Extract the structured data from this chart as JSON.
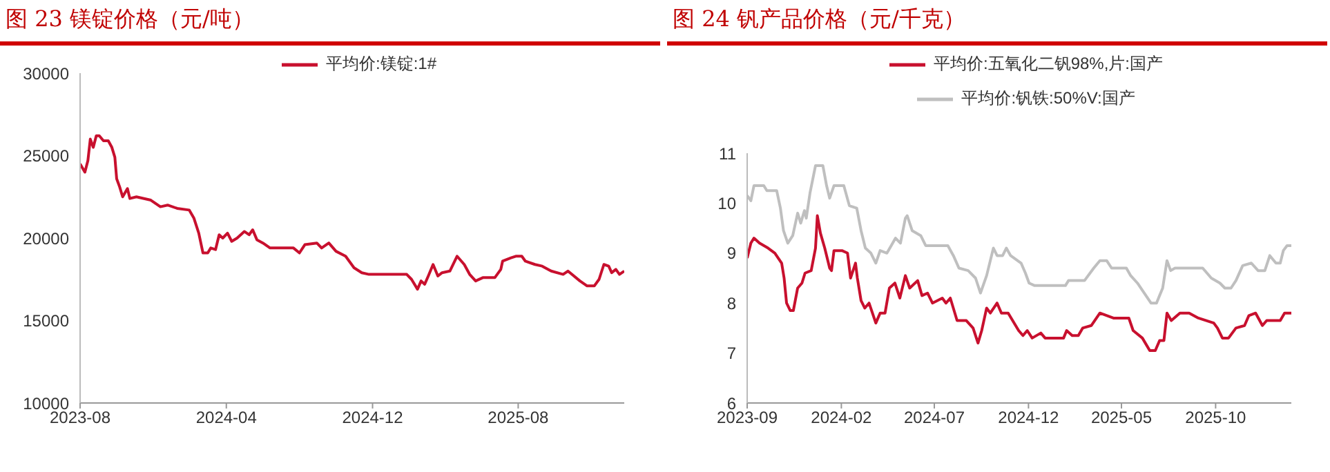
{
  "chart_data": [
    {
      "type": "line",
      "title": "图 23 镁锭价格（元/吨）",
      "legend": "top",
      "marker": "none",
      "xlim": [
        "2023-08-01",
        "2026-01-25"
      ],
      "xticks": [
        "2023-08",
        "2024-04",
        "2024-12",
        "2025-08"
      ],
      "ylim": [
        10000,
        30000
      ],
      "yticks": [
        10000,
        15000,
        20000,
        25000,
        30000
      ],
      "series": [
        {
          "name": "平均价:镁锭:1#",
          "color": "#c8102e",
          "x": [
            "2023-08-01",
            "2023-08-09",
            "2023-08-14",
            "2023-08-18",
            "2023-08-23",
            "2023-08-28",
            "2023-09-02",
            "2023-09-09",
            "2023-09-17",
            "2023-09-23",
            "2023-09-28",
            "2023-10-01",
            "2023-10-06",
            "2023-10-11",
            "2023-10-19",
            "2023-10-23",
            "2023-11-03",
            "2023-11-27",
            "2023-12-13",
            "2023-12-25",
            "2024-01-10",
            "2024-01-30",
            "2024-02-07",
            "2024-02-15",
            "2024-02-22",
            "2024-03-01",
            "2024-03-06",
            "2024-03-14",
            "2024-03-20",
            "2024-03-26",
            "2024-04-03",
            "2024-04-10",
            "2024-04-19",
            "2024-05-01",
            "2024-05-09",
            "2024-05-15",
            "2024-05-22",
            "2024-06-01",
            "2024-06-13",
            "2024-06-29",
            "2024-07-22",
            "2024-08-01",
            "2024-08-10",
            "2024-08-30",
            "2024-09-07",
            "2024-09-19",
            "2024-10-01",
            "2024-10-17",
            "2024-10-31",
            "2024-11-13",
            "2024-11-25",
            "2025-01-27",
            "2025-02-04",
            "2025-02-14",
            "2025-02-20",
            "2025-02-26",
            "2025-03-04",
            "2025-03-12",
            "2025-03-20",
            "2025-03-27",
            "2025-04-09",
            "2025-04-21",
            "2025-05-03",
            "2025-05-12",
            "2025-05-22",
            "2025-06-03",
            "2025-06-23",
            "2025-07-03",
            "2025-07-06",
            "2025-07-20",
            "2025-07-28",
            "2025-08-07",
            "2025-08-13",
            "2025-08-29",
            "2025-09-10",
            "2025-09-25",
            "2025-10-15",
            "2025-10-23",
            "2025-11-12",
            "2025-11-24",
            "2025-12-06",
            "2025-12-14",
            "2025-12-22",
            "2025-12-30",
            "2026-01-04",
            "2026-01-11",
            "2026-01-17",
            "2026-01-25"
          ],
          "values": [
            24500,
            24000,
            24700,
            26000,
            25500,
            26200,
            26200,
            25900,
            25900,
            25500,
            24900,
            23600,
            23100,
            22500,
            23000,
            22400,
            22500,
            22300,
            21900,
            22000,
            21800,
            21700,
            21200,
            20300,
            19100,
            19100,
            19400,
            19300,
            20200,
            20000,
            20300,
            19800,
            20000,
            20400,
            20200,
            20500,
            19900,
            19700,
            19400,
            19400,
            19400,
            19100,
            19600,
            19700,
            19400,
            19700,
            19200,
            18900,
            18200,
            17900,
            17800,
            17800,
            17500,
            16900,
            17400,
            17200,
            17700,
            18400,
            17700,
            17900,
            18000,
            18900,
            18400,
            17800,
            17400,
            17600,
            17600,
            18100,
            18600,
            18800,
            18900,
            18900,
            18600,
            18400,
            18300,
            18000,
            17800,
            18000,
            17400,
            17100,
            17100,
            17500,
            18400,
            18300,
            17900,
            18100,
            17800,
            18000
          ]
        }
      ]
    },
    {
      "type": "line",
      "title": "图 24 钒产品价格（元/千克）",
      "legend": "top",
      "marker": "none",
      "xlim": [
        "2023-09-01",
        "2026-02-01"
      ],
      "xticks": [
        "2023-09",
        "2024-02",
        "2024-07",
        "2024-12",
        "2025-05",
        "2025-10"
      ],
      "ylim": [
        6,
        11
      ],
      "yticks": [
        6,
        7,
        8,
        9,
        10,
        11
      ],
      "series": [
        {
          "name": "平均价:五氧化二钒98%,片:国产",
          "color": "#c8102e",
          "x": [
            "2023-09-01",
            "2023-09-07",
            "2023-09-12",
            "2023-09-21",
            "2023-10-05",
            "2023-10-16",
            "2023-10-27",
            "2023-10-31",
            "2023-11-04",
            "2023-11-10",
            "2023-11-15",
            "2023-11-22",
            "2023-11-29",
            "2023-12-04",
            "2023-12-14",
            "2023-12-21",
            "2023-12-24",
            "2023-12-29",
            "2024-01-05",
            "2024-01-13",
            "2024-01-16",
            "2024-01-20",
            "2024-02-02",
            "2024-02-11",
            "2024-02-16",
            "2024-02-24",
            "2024-02-27",
            "2024-03-04",
            "2024-03-10",
            "2024-03-17",
            "2024-03-28",
            "2024-04-04",
            "2024-04-12",
            "2024-04-19",
            "2024-04-28",
            "2024-05-06",
            "2024-05-15",
            "2024-05-22",
            "2024-06-04",
            "2024-06-11",
            "2024-06-20",
            "2024-06-28",
            "2024-07-14",
            "2024-07-20",
            "2024-07-27",
            "2024-08-07",
            "2024-08-22",
            "2024-09-02",
            "2024-09-10",
            "2024-09-16",
            "2024-09-24",
            "2024-09-30",
            "2024-10-11",
            "2024-10-18",
            "2024-10-29",
            "2024-11-15",
            "2024-11-22",
            "2024-11-29",
            "2024-12-07",
            "2024-12-21",
            "2024-12-28",
            "2025-01-27",
            "2025-02-01",
            "2025-02-10",
            "2025-02-20",
            "2025-02-27",
            "2025-03-13",
            "2025-03-27",
            "2025-04-18",
            "2025-05-13",
            "2025-05-20",
            "2025-06-04",
            "2025-06-16",
            "2025-06-25",
            "2025-07-02",
            "2025-07-09",
            "2025-07-14",
            "2025-07-21",
            "2025-08-04",
            "2025-08-19",
            "2025-09-03",
            "2025-09-28",
            "2025-10-04",
            "2025-10-12",
            "2025-10-22",
            "2025-11-03",
            "2025-11-17",
            "2025-11-24",
            "2025-12-05",
            "2025-12-16",
            "2025-12-23",
            "2026-01-14",
            "2026-01-21",
            "2026-02-01"
          ],
          "values": [
            8.9,
            9.2,
            9.3,
            9.2,
            9.1,
            9.0,
            8.8,
            8.5,
            8.0,
            7.85,
            7.85,
            8.3,
            8.4,
            8.6,
            8.65,
            9.1,
            9.75,
            9.4,
            9.1,
            8.7,
            8.65,
            9.05,
            9.05,
            9.0,
            8.5,
            8.8,
            8.5,
            8.05,
            7.9,
            8.0,
            7.6,
            7.8,
            7.8,
            8.3,
            8.4,
            8.1,
            8.55,
            8.3,
            8.45,
            8.15,
            8.2,
            8.0,
            8.1,
            8.0,
            8.1,
            7.65,
            7.65,
            7.5,
            7.2,
            7.45,
            7.9,
            7.8,
            8.0,
            7.8,
            7.8,
            7.45,
            7.35,
            7.45,
            7.3,
            7.4,
            7.3,
            7.3,
            7.45,
            7.35,
            7.35,
            7.5,
            7.55,
            7.8,
            7.7,
            7.7,
            7.45,
            7.3,
            7.05,
            7.05,
            7.25,
            7.25,
            7.8,
            7.65,
            7.8,
            7.8,
            7.7,
            7.6,
            7.5,
            7.3,
            7.3,
            7.5,
            7.55,
            7.75,
            7.8,
            7.55,
            7.65,
            7.65,
            7.8,
            7.8
          ]
        },
        {
          "name": "平均价:钒铁:50%V:国产",
          "color": "#bfbfbf",
          "x": [
            "2023-09-01",
            "2023-09-07",
            "2023-09-12",
            "2023-09-28",
            "2023-10-03",
            "2023-10-19",
            "2023-10-25",
            "2023-10-30",
            "2023-11-06",
            "2023-11-14",
            "2023-11-22",
            "2023-11-27",
            "2023-12-03",
            "2023-12-06",
            "2023-12-12",
            "2023-12-21",
            "2024-01-02",
            "2024-01-08",
            "2024-01-13",
            "2024-01-20",
            "2024-02-05",
            "2024-02-14",
            "2024-02-26",
            "2024-03-04",
            "2024-03-11",
            "2024-03-20",
            "2024-03-28",
            "2024-04-04",
            "2024-04-15",
            "2024-04-22",
            "2024-04-29",
            "2024-05-07",
            "2024-05-15",
            "2024-05-18",
            "2024-05-26",
            "2024-06-09",
            "2024-06-17",
            "2024-06-28",
            "2024-07-23",
            "2024-08-01",
            "2024-08-10",
            "2024-08-25",
            "2024-09-06",
            "2024-09-14",
            "2024-09-24",
            "2024-10-05",
            "2024-10-11",
            "2024-10-20",
            "2024-10-26",
            "2024-11-02",
            "2024-11-19",
            "2024-11-26",
            "2024-12-02",
            "2024-12-11",
            "2025-01-30",
            "2025-02-04",
            "2025-03-02",
            "2025-03-17",
            "2025-03-27",
            "2025-04-07",
            "2025-04-15",
            "2025-05-09",
            "2025-05-16",
            "2025-05-27",
            "2025-06-07",
            "2025-06-18",
            "2025-06-27",
            "2025-07-02",
            "2025-07-07",
            "2025-07-14",
            "2025-07-20",
            "2025-07-27",
            "2025-09-10",
            "2025-09-24",
            "2025-10-08",
            "2025-10-16",
            "2025-10-26",
            "2025-11-03",
            "2025-11-14",
            "2025-11-28",
            "2025-12-09",
            "2025-12-20",
            "2025-12-28",
            "2026-01-07",
            "2026-01-14",
            "2026-01-19",
            "2026-01-25",
            "2026-02-01"
          ],
          "values": [
            10.15,
            10.05,
            10.35,
            10.35,
            10.25,
            10.25,
            9.9,
            9.45,
            9.2,
            9.35,
            9.8,
            9.6,
            9.85,
            9.7,
            10.2,
            10.75,
            10.75,
            10.35,
            10.1,
            10.35,
            10.35,
            9.95,
            9.9,
            9.45,
            9.1,
            9.0,
            8.8,
            9.05,
            9.0,
            9.15,
            9.3,
            9.2,
            9.7,
            9.75,
            9.45,
            9.35,
            9.15,
            9.15,
            9.15,
            8.95,
            8.7,
            8.65,
            8.5,
            8.2,
            8.55,
            9.1,
            8.95,
            8.95,
            9.1,
            8.95,
            8.8,
            8.6,
            8.4,
            8.35,
            8.35,
            8.45,
            8.45,
            8.7,
            8.85,
            8.85,
            8.7,
            8.7,
            8.55,
            8.4,
            8.2,
            8.0,
            8.0,
            8.15,
            8.3,
            8.85,
            8.65,
            8.7,
            8.7,
            8.5,
            8.4,
            8.3,
            8.3,
            8.45,
            8.75,
            8.8,
            8.65,
            8.65,
            8.95,
            8.8,
            8.8,
            9.05,
            9.15,
            9.15
          ]
        }
      ]
    }
  ]
}
